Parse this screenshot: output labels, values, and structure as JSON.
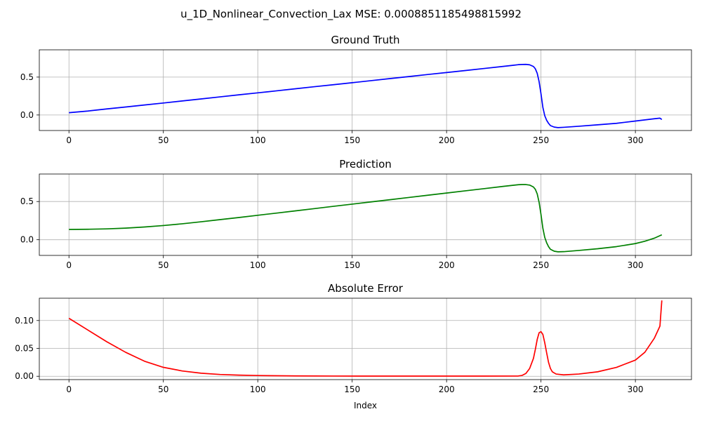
{
  "chart_data": {
    "type": "line",
    "suptitle": "u_1D_Nonlinear_Convection_Lax MSE: 0.0008851185498815992",
    "x_ticks": [
      0,
      50,
      100,
      150,
      200,
      250,
      300
    ],
    "xlim": [
      -15.7,
      329.7
    ],
    "grid": true,
    "panels": [
      {
        "title": "Ground Truth",
        "color": "#0000ff",
        "ylim": [
          -0.205,
          0.86
        ],
        "y_ticks": [
          0.0,
          0.5
        ],
        "y_tick_labels": [
          "0.0",
          "0.5"
        ],
        "xlabel": "",
        "points": [
          [
            0,
            0.03
          ],
          [
            10,
            0.052
          ],
          [
            20,
            0.08
          ],
          [
            30,
            0.105
          ],
          [
            40,
            0.132
          ],
          [
            50,
            0.158
          ],
          [
            60,
            0.185
          ],
          [
            70,
            0.212
          ],
          [
            80,
            0.239
          ],
          [
            90,
            0.266
          ],
          [
            100,
            0.292
          ],
          [
            110,
            0.319
          ],
          [
            120,
            0.346
          ],
          [
            130,
            0.373
          ],
          [
            140,
            0.399
          ],
          [
            150,
            0.426
          ],
          [
            160,
            0.453
          ],
          [
            170,
            0.48
          ],
          [
            180,
            0.507
          ],
          [
            190,
            0.534
          ],
          [
            200,
            0.56
          ],
          [
            210,
            0.587
          ],
          [
            220,
            0.614
          ],
          [
            230,
            0.641
          ],
          [
            235,
            0.655
          ],
          [
            238,
            0.664
          ],
          [
            240,
            0.667
          ],
          [
            242,
            0.668
          ],
          [
            244,
            0.662
          ],
          [
            246,
            0.64
          ],
          [
            247,
            0.61
          ],
          [
            248,
            0.55
          ],
          [
            249,
            0.44
          ],
          [
            250,
            0.28
          ],
          [
            251,
            0.1
          ],
          [
            252,
            -0.01
          ],
          [
            253,
            -0.07
          ],
          [
            254,
            -0.11
          ],
          [
            255,
            -0.14
          ],
          [
            257,
            -0.16
          ],
          [
            259,
            -0.167
          ],
          [
            262,
            -0.163
          ],
          [
            270,
            -0.149
          ],
          [
            280,
            -0.13
          ],
          [
            290,
            -0.11
          ],
          [
            300,
            -0.08
          ],
          [
            310,
            -0.05
          ],
          [
            313,
            -0.042
          ],
          [
            314,
            -0.06
          ]
        ]
      },
      {
        "title": "Prediction",
        "color": "#008000",
        "ylim": [
          -0.205,
          0.86
        ],
        "y_ticks": [
          0.0,
          0.5
        ],
        "y_tick_labels": [
          "0.0",
          "0.5"
        ],
        "xlabel": "",
        "points": [
          [
            0,
            0.135
          ],
          [
            10,
            0.137
          ],
          [
            20,
            0.142
          ],
          [
            30,
            0.152
          ],
          [
            40,
            0.167
          ],
          [
            50,
            0.186
          ],
          [
            60,
            0.209
          ],
          [
            70,
            0.235
          ],
          [
            80,
            0.263
          ],
          [
            90,
            0.291
          ],
          [
            100,
            0.32
          ],
          [
            110,
            0.349
          ],
          [
            120,
            0.378
          ],
          [
            130,
            0.407
          ],
          [
            140,
            0.437
          ],
          [
            150,
            0.466
          ],
          [
            160,
            0.495
          ],
          [
            170,
            0.524
          ],
          [
            180,
            0.553
          ],
          [
            190,
            0.582
          ],
          [
            200,
            0.611
          ],
          [
            210,
            0.64
          ],
          [
            220,
            0.669
          ],
          [
            230,
            0.698
          ],
          [
            235,
            0.712
          ],
          [
            238,
            0.72
          ],
          [
            240,
            0.722
          ],
          [
            242,
            0.722
          ],
          [
            244,
            0.715
          ],
          [
            246,
            0.69
          ],
          [
            247,
            0.66
          ],
          [
            248,
            0.6
          ],
          [
            249,
            0.49
          ],
          [
            250,
            0.33
          ],
          [
            251,
            0.15
          ],
          [
            252,
            0.03
          ],
          [
            253,
            -0.04
          ],
          [
            254,
            -0.09
          ],
          [
            255,
            -0.125
          ],
          [
            257,
            -0.15
          ],
          [
            259,
            -0.158
          ],
          [
            262,
            -0.156
          ],
          [
            270,
            -0.14
          ],
          [
            280,
            -0.118
          ],
          [
            290,
            -0.09
          ],
          [
            300,
            -0.05
          ],
          [
            305,
            -0.02
          ],
          [
            310,
            0.02
          ],
          [
            314,
            0.065
          ]
        ]
      },
      {
        "title": "Absolute Error",
        "color": "#ff0000",
        "ylim": [
          -0.006,
          0.14
        ],
        "y_ticks": [
          0.0,
          0.05,
          0.1
        ],
        "y_tick_labels": [
          "0.00",
          "0.05",
          "0.10"
        ],
        "xlabel": "Index",
        "points": [
          [
            0,
            0.104
          ],
          [
            10,
            0.083
          ],
          [
            20,
            0.062
          ],
          [
            30,
            0.043
          ],
          [
            40,
            0.027
          ],
          [
            50,
            0.016
          ],
          [
            60,
            0.0095
          ],
          [
            70,
            0.0055
          ],
          [
            80,
            0.0032
          ],
          [
            90,
            0.002
          ],
          [
            100,
            0.0013
          ],
          [
            120,
            0.0006
          ],
          [
            140,
            0.0004
          ],
          [
            160,
            0.0003
          ],
          [
            180,
            0.0003
          ],
          [
            200,
            0.0003
          ],
          [
            220,
            0.0003
          ],
          [
            238,
            0.0005
          ],
          [
            240,
            0.0015
          ],
          [
            242,
            0.005
          ],
          [
            244,
            0.014
          ],
          [
            246,
            0.032
          ],
          [
            247,
            0.048
          ],
          [
            248,
            0.066
          ],
          [
            249,
            0.078
          ],
          [
            250,
            0.08
          ],
          [
            251,
            0.075
          ],
          [
            252,
            0.06
          ],
          [
            253,
            0.042
          ],
          [
            254,
            0.025
          ],
          [
            255,
            0.014
          ],
          [
            256,
            0.008
          ],
          [
            258,
            0.004
          ],
          [
            262,
            0.0025
          ],
          [
            270,
            0.004
          ],
          [
            280,
            0.008
          ],
          [
            290,
            0.016
          ],
          [
            300,
            0.029
          ],
          [
            305,
            0.043
          ],
          [
            310,
            0.068
          ],
          [
            313,
            0.09
          ],
          [
            314,
            0.136
          ]
        ]
      }
    ]
  }
}
